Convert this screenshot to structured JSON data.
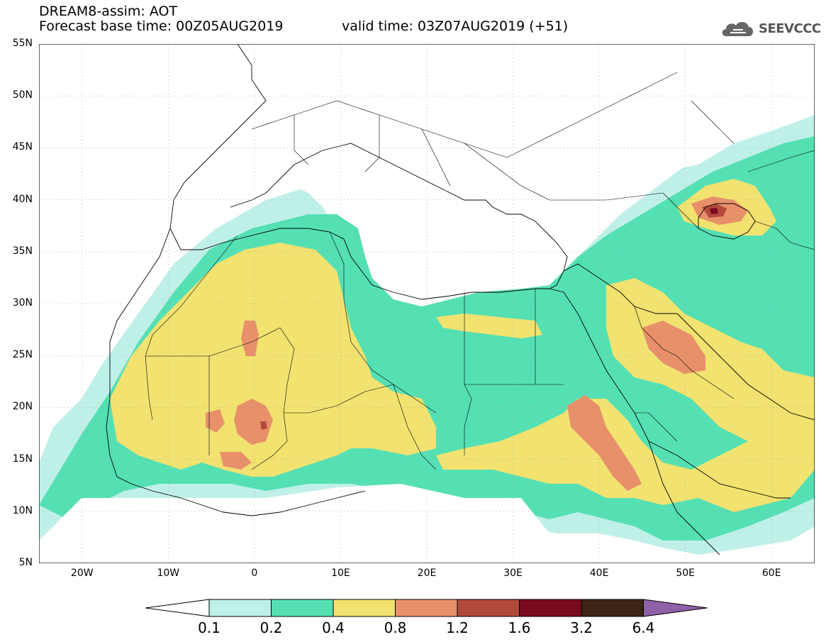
{
  "header": {
    "title": "DREAM8-assim: AOT",
    "base_time": "Forecast base time: 00Z05AUG2019",
    "valid_time": "valid time: 03Z07AUG2019 (+51)"
  },
  "logo": {
    "text": "SEEVCCC",
    "icon": "cloud-logo-icon"
  },
  "map": {
    "lat_labels": [
      "55N",
      "50N",
      "45N",
      "40N",
      "35N",
      "30N",
      "25N",
      "20N",
      "15N",
      "10N",
      "5N"
    ],
    "lon_labels": [
      "20W",
      "10W",
      "0",
      "10E",
      "20E",
      "30E",
      "40E",
      "50E",
      "60E"
    ],
    "lon_range": [
      -25,
      65
    ],
    "lat_range": [
      5,
      55
    ]
  },
  "colorbar": {
    "labels": [
      "0.1",
      "0.2",
      "0.4",
      "0.8",
      "1.2",
      "1.6",
      "3.2",
      "6.4"
    ],
    "colors": [
      "#ffffff",
      "#bff0e8",
      "#55e0b4",
      "#f2e270",
      "#e8906a",
      "#b24a3c",
      "#7a0a20",
      "#3c2414",
      "#9060a8"
    ]
  },
  "palette": {
    "c1": "#bff0e8",
    "c2": "#55e0b4",
    "c3": "#f2e270",
    "c4": "#e8906a",
    "c5": "#b24a3c",
    "c6": "#7a0a20"
  }
}
